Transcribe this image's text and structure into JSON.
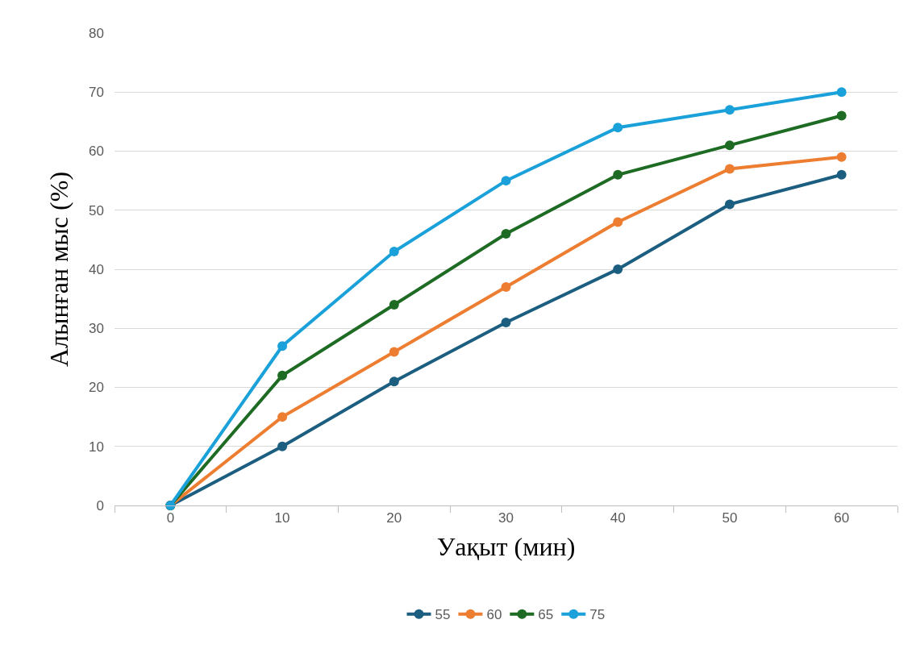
{
  "chart_data": {
    "type": "line",
    "xlabel": "Уақыт (мин)",
    "ylabel": "Алынған мыс (%)",
    "categories": [
      "0",
      "10",
      "20",
      "30",
      "40",
      "50",
      "60"
    ],
    "series": [
      {
        "name": "55",
        "color": "#1b5e80",
        "values": [
          0,
          10,
          21,
          31,
          40,
          51,
          56
        ]
      },
      {
        "name": "60",
        "color": "#ed7d31",
        "values": [
          0,
          15,
          26,
          37,
          48,
          57,
          59
        ]
      },
      {
        "name": "65",
        "color": "#1e6b24",
        "values": [
          0,
          22,
          34,
          46,
          56,
          61,
          66
        ]
      },
      {
        "name": "75",
        "color": "#1ba1d9",
        "values": [
          0,
          27,
          43,
          55,
          64,
          67,
          70
        ]
      }
    ],
    "ylim": [
      0,
      80
    ],
    "yticks": [
      0,
      10,
      20,
      30,
      40,
      50,
      60,
      70,
      80
    ],
    "grid": "y",
    "legend": "bottom",
    "marker": "circle",
    "line_style": "solid"
  }
}
